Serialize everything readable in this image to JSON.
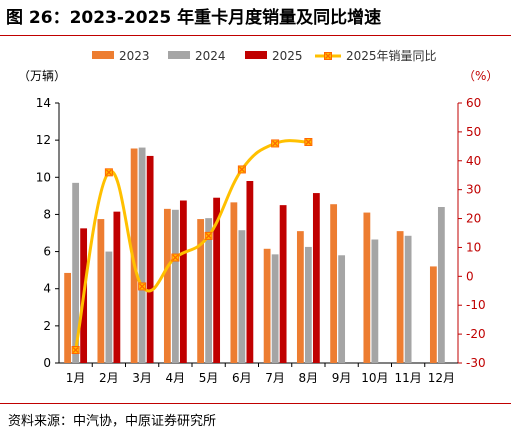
{
  "figure": {
    "title": "图 26：2023-2025 年重卡月度销量及同比增速",
    "source": "资料来源：中汽协，中原证券研究所"
  },
  "chart_data": {
    "type": "bar",
    "title": "图 26：2023-2025 年重卡月度销量及同比增速",
    "ylabel": "（万辆）",
    "y2label": "（%）",
    "categories": [
      "1月",
      "2月",
      "3月",
      "4月",
      "5月",
      "6月",
      "7月",
      "8月",
      "9月",
      "10月",
      "11月",
      "12月"
    ],
    "ylim": [
      0,
      14
    ],
    "yticks": [
      0,
      2,
      4,
      6,
      8,
      10,
      12,
      14
    ],
    "y2lim": [
      -30,
      60
    ],
    "y2ticks": [
      -30,
      -20,
      -10,
      0,
      10,
      20,
      30,
      40,
      50,
      60
    ],
    "legend_position": "top",
    "series": [
      {
        "name": "2023",
        "kind": "bar",
        "axis": "left",
        "color": "#ed7d31",
        "values": [
          4.85,
          7.75,
          11.55,
          8.3,
          7.75,
          8.65,
          6.15,
          7.1,
          8.55,
          8.1,
          7.1,
          5.2
        ]
      },
      {
        "name": "2024",
        "kind": "bar",
        "axis": "left",
        "color": "#a5a5a5",
        "values": [
          9.7,
          6.0,
          11.6,
          8.25,
          7.8,
          7.15,
          5.85,
          6.25,
          5.8,
          6.65,
          6.85,
          8.4
        ]
      },
      {
        "name": "2025",
        "kind": "bar",
        "axis": "left",
        "color": "#c00000",
        "values": [
          7.25,
          8.15,
          11.15,
          8.75,
          8.9,
          9.8,
          8.5,
          9.15,
          null,
          null,
          null,
          null
        ]
      },
      {
        "name": "2025年销量同比",
        "kind": "line",
        "axis": "right",
        "color": "#ffc000",
        "marker_color": "#ff6600",
        "values": [
          -25.5,
          36,
          -3.5,
          6.5,
          14,
          37,
          46,
          46.5,
          null,
          null,
          null,
          null
        ]
      }
    ]
  }
}
